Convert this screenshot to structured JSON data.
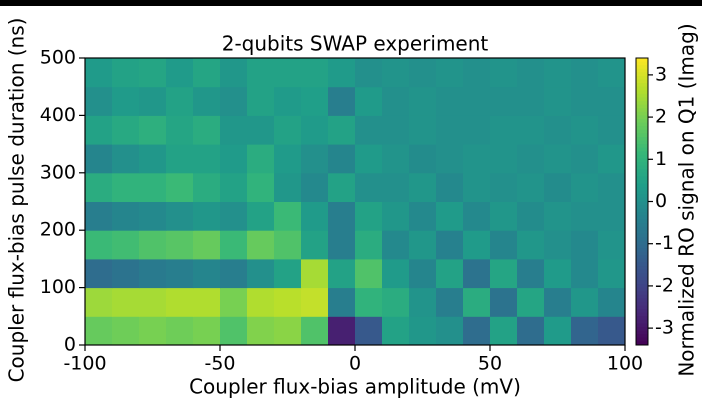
{
  "chart_data": {
    "type": "heatmap",
    "title": "2-qubits SWAP experiment",
    "x_label": "Coupler flux-bias amplitude (mV)",
    "y_label": "Coupler flux-bias pulse duration (ns)",
    "colorbar_label": "Normalized RO signal on Q1 (Imag)",
    "colormap": "viridis",
    "x": [
      -95,
      -85,
      -75,
      -65,
      -55,
      -45,
      -35,
      -25,
      -15,
      -5,
      5,
      15,
      25,
      35,
      45,
      55,
      65,
      75,
      85,
      95
    ],
    "y": [
      25,
      75,
      125,
      175,
      225,
      275,
      325,
      375,
      425,
      475
    ],
    "z": [
      [
        1.8,
        1.9,
        2.0,
        1.9,
        2.0,
        1.5,
        2.1,
        2.2,
        1.5,
        -2.8,
        -1.5,
        0.5,
        0.2,
        0.0,
        -1.0,
        0.5,
        -1.0,
        0.3,
        -1.2,
        -1.5
      ],
      [
        2.4,
        2.5,
        2.5,
        2.6,
        2.6,
        2.0,
        2.6,
        2.7,
        2.8,
        -0.5,
        1.0,
        0.8,
        0.1,
        -0.5,
        0.8,
        -0.8,
        0.6,
        -0.5,
        0.2,
        -0.3
      ],
      [
        -1.0,
        -0.8,
        -0.6,
        -0.5,
        -0.3,
        -0.5,
        0,
        0.5,
        2.5,
        0.5,
        1.5,
        0.3,
        -0.3,
        0.5,
        -0.8,
        0.6,
        -0.5,
        0.3,
        -0.2,
        0.2
      ],
      [
        1.2,
        1.3,
        1.5,
        1.6,
        1.8,
        1.2,
        1.8,
        1.5,
        0.5,
        -0.5,
        0.8,
        -0.2,
        0.2,
        -0.4,
        0.3,
        -0.3,
        0.2,
        0,
        -0.2,
        0.1
      ],
      [
        -0.5,
        -0.3,
        -0.2,
        0,
        0.2,
        0,
        0.5,
        1.2,
        0.3,
        -0.5,
        0.5,
        0.2,
        -0.2,
        0.3,
        -0.2,
        0.2,
        -0.1,
        0.1,
        0,
        0
      ],
      [
        0.8,
        1.0,
        1.0,
        1.2,
        0.8,
        0.5,
        1.0,
        0.2,
        -0.2,
        0.5,
        0,
        0,
        0.2,
        -0.2,
        0.1,
        0,
        0.1,
        -0.1,
        0.1,
        0
      ],
      [
        -0.3,
        0,
        0.2,
        0.5,
        0.5,
        0.3,
        0.8,
        0.3,
        0,
        -0.3,
        0.3,
        0.1,
        -0.1,
        0,
        0.1,
        0.1,
        0,
        0.1,
        0,
        0.2
      ],
      [
        0.5,
        0.7,
        0.9,
        0.6,
        0.8,
        0.2,
        0.2,
        0.5,
        0.3,
        0.5,
        0,
        0,
        0.1,
        0,
        0,
        0.1,
        0.1,
        0,
        0.1,
        0
      ],
      [
        0,
        0.3,
        0.2,
        0.5,
        0.2,
        0,
        0.5,
        0.3,
        0.4,
        -0.5,
        0.3,
        0,
        0.1,
        0,
        0,
        0,
        0,
        0.1,
        0,
        0
      ],
      [
        0.3,
        0.5,
        0.6,
        0.3,
        0.6,
        0.2,
        0.5,
        0.5,
        0.5,
        0.3,
        0,
        0.1,
        0,
        0.1,
        0,
        0.1,
        0,
        0.1,
        0,
        0.1
      ]
    ],
    "xlim": [
      -100,
      100
    ],
    "xticks": [
      -100,
      -50,
      0,
      50,
      100
    ],
    "ylim": [
      0,
      500
    ],
    "yticks": [
      0,
      100,
      200,
      300,
      400,
      500
    ],
    "clim": [
      -3.4,
      3.4
    ],
    "cticks": [
      -3,
      -2,
      -1,
      0,
      1,
      2,
      3
    ]
  }
}
